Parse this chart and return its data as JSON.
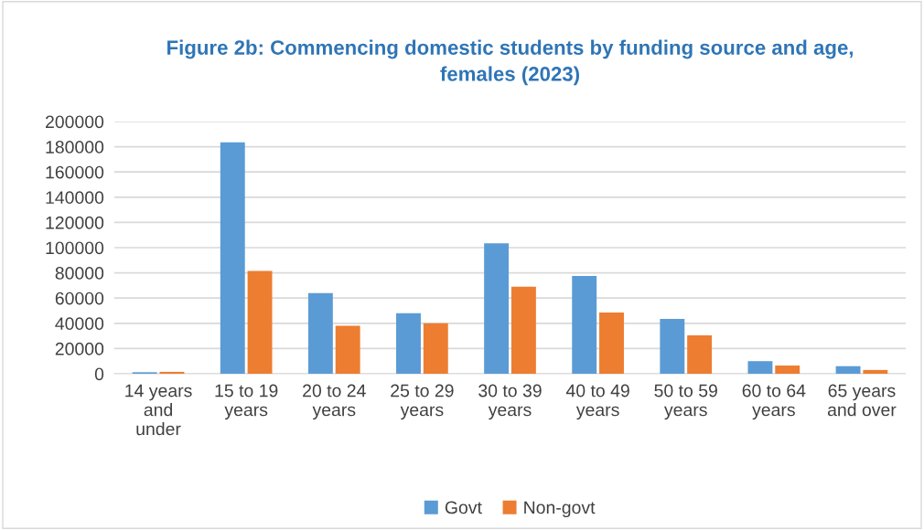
{
  "chart_data": {
    "type": "bar",
    "title": "Figure 2b: Commencing domestic students by funding source and age,\nfemales (2023)",
    "categories": [
      "14 years\nand\nunder",
      "15 to 19\nyears",
      "20 to 24\nyears",
      "25 to 29\nyears",
      "30 to 39\nyears",
      "40 to 49\nyears",
      "50 to 59\nyears",
      "60 to 64\nyears",
      "65 years\nand over"
    ],
    "series": [
      {
        "name": "Govt",
        "color": "#5b9bd5",
        "values": [
          1200,
          183500,
          64000,
          48000,
          103500,
          77500,
          43500,
          10000,
          6000
        ]
      },
      {
        "name": "Non-govt",
        "color": "#ed7d31",
        "values": [
          1500,
          81500,
          38000,
          40000,
          69000,
          48500,
          30500,
          6500,
          3000
        ]
      }
    ],
    "ylim": [
      0,
      200000
    ],
    "yticks": [
      0,
      20000,
      40000,
      60000,
      80000,
      100000,
      120000,
      140000,
      160000,
      180000,
      200000
    ],
    "grid": "y",
    "legend": "bottom"
  }
}
